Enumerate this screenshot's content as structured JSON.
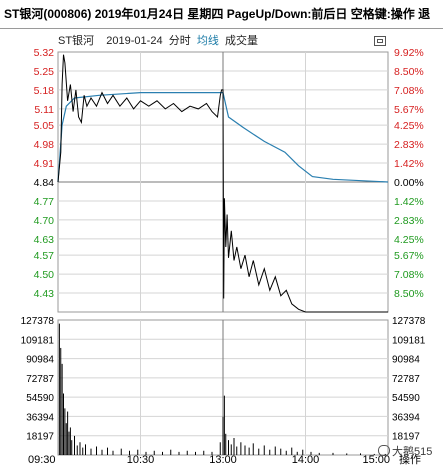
{
  "header": {
    "title": "ST银河(000806)  2019年01月24日 星期四 PageUp/Down:前后日 空格键:操作 退"
  },
  "chart_header": {
    "stock": "ST银河",
    "date": "2019-01-24",
    "mode": "分时",
    "avg_label": "均线",
    "volume_label": "成交量"
  },
  "footer": {
    "action_label": "操作",
    "watermark": "大鹅515"
  },
  "colors": {
    "price_line": "#000000",
    "avg_line": "#2a7fb0",
    "up": "#d62020",
    "down": "#1f9a1f",
    "flat": "#000000"
  },
  "chart_data": {
    "type": "line",
    "x_ticks": [
      "09:30",
      "10:30",
      "13:00",
      "14:00",
      "15:00"
    ],
    "price_ticks": [
      {
        "price": "5.32",
        "pct": "9.92%",
        "dir": "up"
      },
      {
        "price": "5.25",
        "pct": "8.50%",
        "dir": "up"
      },
      {
        "price": "5.18",
        "pct": "7.08%",
        "dir": "up"
      },
      {
        "price": "5.11",
        "pct": "5.67%",
        "dir": "up"
      },
      {
        "price": "5.05",
        "pct": "4.25%",
        "dir": "up"
      },
      {
        "price": "4.98",
        "pct": "2.83%",
        "dir": "up"
      },
      {
        "price": "4.91",
        "pct": "1.42%",
        "dir": "up"
      },
      {
        "price": "4.84",
        "pct": "0.00%",
        "dir": "flat"
      },
      {
        "price": "4.77",
        "pct": "1.42%",
        "dir": "down"
      },
      {
        "price": "4.70",
        "pct": "2.83%",
        "dir": "down"
      },
      {
        "price": "4.63",
        "pct": "4.25%",
        "dir": "down"
      },
      {
        "price": "4.57",
        "pct": "5.67%",
        "dir": "down"
      },
      {
        "price": "4.50",
        "pct": "7.08%",
        "dir": "down"
      },
      {
        "price": "4.43",
        "pct": "8.50%",
        "dir": "down"
      }
    ],
    "volume_ticks": [
      "127378",
      "109181",
      "90984",
      "72787",
      "54590",
      "36394",
      "18197"
    ],
    "price_range": [
      4.36,
      5.32
    ],
    "volume_range": [
      0,
      127378
    ],
    "price_series": [
      {
        "t": 0,
        "p": 4.84
      },
      {
        "t": 2,
        "p": 4.95
      },
      {
        "t": 3,
        "p": 5.2
      },
      {
        "t": 4,
        "p": 5.31
      },
      {
        "t": 5,
        "p": 5.28
      },
      {
        "t": 7,
        "p": 5.14
      },
      {
        "t": 9,
        "p": 5.2
      },
      {
        "t": 11,
        "p": 5.1
      },
      {
        "t": 13,
        "p": 5.18
      },
      {
        "t": 15,
        "p": 5.08
      },
      {
        "t": 17,
        "p": 5.06
      },
      {
        "t": 19,
        "p": 5.16
      },
      {
        "t": 21,
        "p": 5.12
      },
      {
        "t": 24,
        "p": 5.15
      },
      {
        "t": 28,
        "p": 5.12
      },
      {
        "t": 32,
        "p": 5.17
      },
      {
        "t": 36,
        "p": 5.13
      },
      {
        "t": 40,
        "p": 5.16
      },
      {
        "t": 45,
        "p": 5.12
      },
      {
        "t": 50,
        "p": 5.15
      },
      {
        "t": 55,
        "p": 5.11
      },
      {
        "t": 60,
        "p": 5.14
      },
      {
        "t": 66,
        "p": 5.12
      },
      {
        "t": 72,
        "p": 5.14
      },
      {
        "t": 78,
        "p": 5.11
      },
      {
        "t": 84,
        "p": 5.13
      },
      {
        "t": 90,
        "p": 5.1
      },
      {
        "t": 96,
        "p": 5.12
      },
      {
        "t": 102,
        "p": 5.11
      },
      {
        "t": 108,
        "p": 5.13
      },
      {
        "t": 112,
        "p": 5.1
      },
      {
        "t": 116,
        "p": 5.08
      },
      {
        "t": 118,
        "p": 5.16
      },
      {
        "t": 119,
        "p": 5.18
      },
      {
        "t": 120,
        "p": 5.18
      },
      {
        "t": 120.5,
        "p": 4.41
      },
      {
        "t": 121,
        "p": 4.78
      },
      {
        "t": 122,
        "p": 4.6
      },
      {
        "t": 123,
        "p": 4.72
      },
      {
        "t": 124,
        "p": 4.56
      },
      {
        "t": 126,
        "p": 4.66
      },
      {
        "t": 128,
        "p": 4.55
      },
      {
        "t": 130,
        "p": 4.6
      },
      {
        "t": 133,
        "p": 4.52
      },
      {
        "t": 136,
        "p": 4.57
      },
      {
        "t": 139,
        "p": 4.49
      },
      {
        "t": 142,
        "p": 4.55
      },
      {
        "t": 146,
        "p": 4.46
      },
      {
        "t": 150,
        "p": 4.52
      },
      {
        "t": 154,
        "p": 4.44
      },
      {
        "t": 158,
        "p": 4.49
      },
      {
        "t": 162,
        "p": 4.42
      },
      {
        "t": 166,
        "p": 4.44
      },
      {
        "t": 170,
        "p": 4.39
      },
      {
        "t": 175,
        "p": 4.37
      },
      {
        "t": 180,
        "p": 4.36
      },
      {
        "t": 240,
        "p": 4.36
      }
    ],
    "avg_series": [
      {
        "t": 0,
        "p": 4.84
      },
      {
        "t": 3,
        "p": 5.05
      },
      {
        "t": 6,
        "p": 5.12
      },
      {
        "t": 12,
        "p": 5.15
      },
      {
        "t": 30,
        "p": 5.16
      },
      {
        "t": 60,
        "p": 5.17
      },
      {
        "t": 90,
        "p": 5.17
      },
      {
        "t": 120,
        "p": 5.17
      },
      {
        "t": 124,
        "p": 5.08
      },
      {
        "t": 135,
        "p": 5.04
      },
      {
        "t": 150,
        "p": 4.99
      },
      {
        "t": 165,
        "p": 4.95
      },
      {
        "t": 175,
        "p": 4.9
      },
      {
        "t": 185,
        "p": 4.86
      },
      {
        "t": 200,
        "p": 4.85
      },
      {
        "t": 240,
        "p": 4.84
      }
    ],
    "volume_series": [
      {
        "t": 1,
        "v": 124000
      },
      {
        "t": 2,
        "v": 101000
      },
      {
        "t": 3,
        "v": 86000
      },
      {
        "t": 4,
        "v": 58000
      },
      {
        "t": 5,
        "v": 44000
      },
      {
        "t": 6,
        "v": 30000
      },
      {
        "t": 7,
        "v": 41000
      },
      {
        "t": 8,
        "v": 22000
      },
      {
        "t": 9,
        "v": 26000
      },
      {
        "t": 10,
        "v": 14000
      },
      {
        "t": 12,
        "v": 18000
      },
      {
        "t": 14,
        "v": 9000
      },
      {
        "t": 16,
        "v": 12000
      },
      {
        "t": 18,
        "v": 7000
      },
      {
        "t": 20,
        "v": 10000
      },
      {
        "t": 24,
        "v": 6000
      },
      {
        "t": 28,
        "v": 8000
      },
      {
        "t": 32,
        "v": 5000
      },
      {
        "t": 36,
        "v": 7000
      },
      {
        "t": 40,
        "v": 4000
      },
      {
        "t": 46,
        "v": 6000
      },
      {
        "t": 52,
        "v": 4000
      },
      {
        "t": 58,
        "v": 5000
      },
      {
        "t": 64,
        "v": 3000
      },
      {
        "t": 70,
        "v": 4000
      },
      {
        "t": 76,
        "v": 3000
      },
      {
        "t": 82,
        "v": 5000
      },
      {
        "t": 88,
        "v": 3000
      },
      {
        "t": 94,
        "v": 4000
      },
      {
        "t": 100,
        "v": 3000
      },
      {
        "t": 106,
        "v": 4000
      },
      {
        "t": 112,
        "v": 3000
      },
      {
        "t": 118,
        "v": 12000
      },
      {
        "t": 120,
        "v": 36000
      },
      {
        "t": 121,
        "v": 56000
      },
      {
        "t": 122,
        "v": 20000
      },
      {
        "t": 124,
        "v": 14000
      },
      {
        "t": 126,
        "v": 10000
      },
      {
        "t": 128,
        "v": 16000
      },
      {
        "t": 130,
        "v": 8000
      },
      {
        "t": 133,
        "v": 12000
      },
      {
        "t": 136,
        "v": 9000
      },
      {
        "t": 139,
        "v": 7000
      },
      {
        "t": 142,
        "v": 11000
      },
      {
        "t": 146,
        "v": 6000
      },
      {
        "t": 150,
        "v": 9000
      },
      {
        "t": 154,
        "v": 5000
      },
      {
        "t": 158,
        "v": 8000
      },
      {
        "t": 162,
        "v": 6000
      },
      {
        "t": 166,
        "v": 4000
      },
      {
        "t": 170,
        "v": 7000
      },
      {
        "t": 174,
        "v": 3000
      },
      {
        "t": 178,
        "v": 5000
      },
      {
        "t": 184,
        "v": 3000
      },
      {
        "t": 190,
        "v": 2000
      },
      {
        "t": 200,
        "v": 2000
      },
      {
        "t": 210,
        "v": 1500
      },
      {
        "t": 220,
        "v": 1500
      },
      {
        "t": 230,
        "v": 1000
      },
      {
        "t": 238,
        "v": 1000
      }
    ]
  }
}
